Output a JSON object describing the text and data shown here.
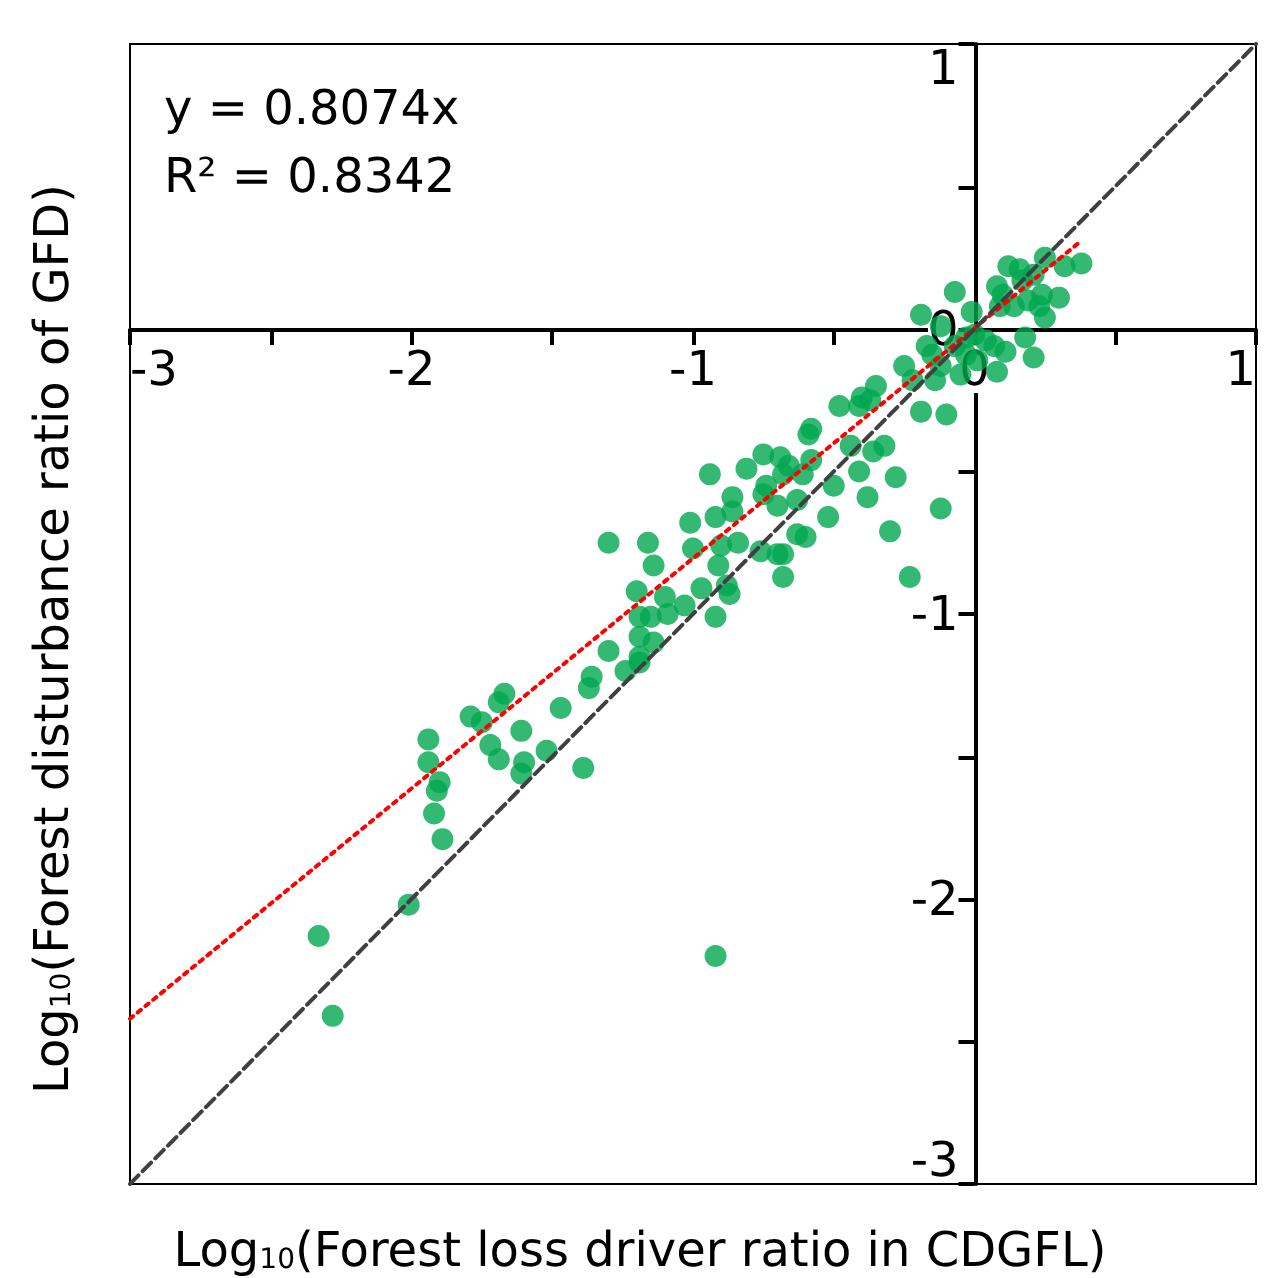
{
  "chart_data": {
    "type": "scatter",
    "xlabel": "Log$_{10}$(Forest loss driver ratio in CDGFL)",
    "ylabel": "Log$_{10}$(Forest disturbance ratio of GFD)",
    "annotations": [
      "y = 0.8074x",
      "R² = 0.8342"
    ],
    "xlim": [
      -3,
      1
    ],
    "ylim": [
      -3,
      1
    ],
    "xticks": [
      -3,
      {
        "value": -2.5,
        "label": null
      },
      -2,
      {
        "value": -1.5,
        "label": null
      },
      -1,
      {
        "value": -0.5,
        "label": null
      },
      0,
      {
        "value": 0.5,
        "label": null
      },
      1
    ],
    "yticks": [
      -3,
      {
        "value": -2.5,
        "label": null
      },
      -2,
      {
        "value": -1.5,
        "label": null
      },
      -1,
      {
        "value": -0.5,
        "label": null
      },
      0,
      {
        "value": 0.5,
        "label": null
      },
      1
    ],
    "series": [
      {
        "type": "scatter",
        "color": "#00a84f",
        "marker": "circle",
        "x": [
          -1.94,
          -1.94,
          -1.9,
          -1.91,
          -1.92,
          -1.89,
          -2.01,
          -2.33,
          -2.28,
          -0.92,
          -1.79,
          -1.75,
          -1.69,
          -1.67,
          -1.72,
          -1.69,
          -1.61,
          -1.61,
          -1.6,
          -1.52,
          -1.47,
          -1.39,
          -1.36,
          -1.37,
          -1.24,
          -1.19,
          -1.3,
          -1.16,
          -1.14,
          -1.2,
          -1.19,
          -1.15,
          -1.1,
          -1.03,
          -1.09,
          -1.19,
          -1.14,
          -1.3,
          -1.19,
          -1.01,
          -1.0,
          -0.92,
          -0.86,
          -0.86,
          -0.9,
          -0.91,
          -0.97,
          -0.88,
          -0.87,
          -0.92,
          -0.84,
          -0.94,
          -0.81,
          -0.75,
          -0.69,
          -0.68,
          -0.66,
          -0.74,
          -0.7,
          -0.76,
          -0.7,
          -0.68,
          -0.68,
          -0.63,
          -0.6,
          -0.63,
          -0.61,
          -0.58,
          -0.59,
          -0.58,
          -0.52,
          -0.5,
          -0.48,
          -0.41,
          -0.44,
          -0.41,
          -0.38,
          -0.36,
          -0.37,
          -0.75,
          -0.4,
          -0.35,
          -0.32,
          -0.28,
          -0.3,
          -0.23,
          -0.12,
          -0.25,
          -0.22,
          -0.19,
          -0.17,
          -0.15,
          -0.12,
          -0.14,
          -0.19,
          -0.1,
          -0.12,
          -0.07,
          -0.07,
          -0.03,
          -0.01,
          0.0,
          -0.03,
          -0.05,
          0.01,
          0.04,
          0.07,
          0.08,
          0.11,
          0.18,
          0.21,
          0.08,
          0.1,
          0.09,
          0.12,
          0.16,
          0.17,
          0.14,
          0.21,
          0.19,
          0.23,
          0.25,
          0.24,
          0.25,
          0.3,
          0.32,
          0.38
        ],
        "values": [
          -1.44,
          -1.52,
          -1.59,
          -1.62,
          -1.7,
          -1.79,
          -2.02,
          -2.13,
          -2.41,
          -2.2,
          -1.36,
          -1.38,
          -1.31,
          -1.28,
          -1.46,
          -1.51,
          -1.41,
          -1.56,
          -1.52,
          -1.48,
          -1.33,
          -1.54,
          -1.22,
          -1.26,
          -1.2,
          -1.17,
          -0.75,
          -0.75,
          -0.83,
          -0.92,
          -1.01,
          -1.01,
          -0.94,
          -0.97,
          -1.0,
          -1.08,
          -1.1,
          -1.13,
          -1.15,
          -0.68,
          -0.77,
          -0.66,
          -0.59,
          -0.64,
          -0.76,
          -0.83,
          -0.91,
          -0.9,
          -0.93,
          -1.01,
          -0.75,
          -0.51,
          -0.49,
          -0.44,
          -0.45,
          -0.51,
          -0.48,
          -0.55,
          -0.62,
          -0.78,
          -0.79,
          -0.79,
          -0.87,
          -0.72,
          -0.73,
          -0.6,
          -0.51,
          -0.46,
          -0.37,
          -0.35,
          -0.66,
          -0.55,
          -0.27,
          -0.27,
          -0.41,
          -0.5,
          -0.59,
          -0.43,
          -0.25,
          -0.58,
          -0.24,
          -0.2,
          -0.41,
          -0.52,
          -0.71,
          -0.87,
          -0.63,
          -0.13,
          -0.18,
          0.05,
          -0.06,
          -0.09,
          0.01,
          -0.18,
          -0.29,
          -0.3,
          -0.13,
          0.13,
          -0.06,
          -0.03,
          0.06,
          -0.02,
          -0.09,
          -0.16,
          -0.11,
          -0.04,
          -0.06,
          -0.15,
          -0.08,
          -0.03,
          -0.1,
          0.15,
          0.12,
          0.08,
          0.22,
          0.21,
          0.17,
          0.08,
          0.19,
          0.1,
          0.08,
          0.04,
          0.12,
          0.25,
          0.11,
          0.22,
          0.23
        ]
      },
      {
        "type": "line",
        "color": "#ff0000",
        "marker": "none",
        "line_style": "dotted",
        "x": [
          -3,
          0.38
        ],
        "values": [
          -2.42,
          0.31
        ]
      },
      {
        "type": "line",
        "color": "#404040",
        "marker": "none",
        "line_style": "dashed",
        "x": [
          -3,
          1
        ],
        "values": [
          -3,
          1
        ]
      }
    ]
  }
}
